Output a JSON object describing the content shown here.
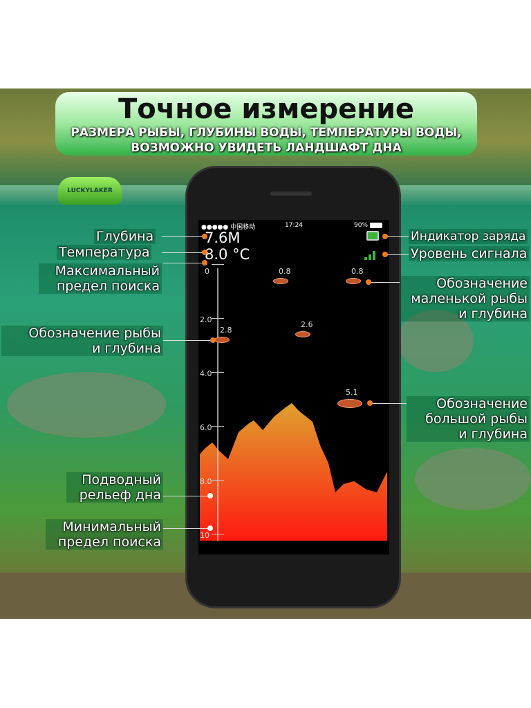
{
  "banner": {
    "title": "Точное измерение",
    "line1": "РАЗМЕРА РЫБЫ, ГЛУБИНЫ ВОДЫ, ТЕМПЕРАТУРЫ ВОДЫ,",
    "line2": "ВОЗМОЖНО УВИДЕТЬ ЛАНДШАФТ ДНА"
  },
  "brand": "LUCKYLAKER",
  "status": {
    "carrier": "●●●●● 中国移动",
    "time": "17:24",
    "battery": "90%"
  },
  "readout": {
    "depth": "7.6M",
    "temperature": "8.0 °C"
  },
  "scale": [
    "0",
    "2.0",
    "4.0",
    "6.0",
    "8.0",
    "10"
  ],
  "fish": [
    {
      "depth": "0.8",
      "size": "small"
    },
    {
      "depth": "0.8",
      "size": "small"
    },
    {
      "depth": "2.8",
      "size": "small"
    },
    {
      "depth": "2.6",
      "size": "small"
    },
    {
      "depth": "5.1",
      "size": "big"
    }
  ],
  "labels": {
    "depth": "Глубина",
    "temperature": "Температура",
    "max1": "Максимальный",
    "max2": "предел поиска",
    "fish1": "Обозначение рыбы",
    "fish2": "и глубина",
    "bottom1": "Подводный",
    "bottom2": "рельеф дна",
    "min1": "Минимальный",
    "min2": "предел поиска",
    "battery": "Индикатор заряда",
    "signal": "Уровень сигнала",
    "small1": "Обозначение",
    "small2": "маленькой рыбы",
    "small3": "и глубина",
    "big1": "Обозначение",
    "big2": "большой рыбы",
    "big3": "и глубина"
  },
  "colors": {
    "accent": "#f07a20",
    "bottom_top": "#e0a030",
    "bottom_base": "#ff1a10",
    "signal": "#3cb43c"
  }
}
